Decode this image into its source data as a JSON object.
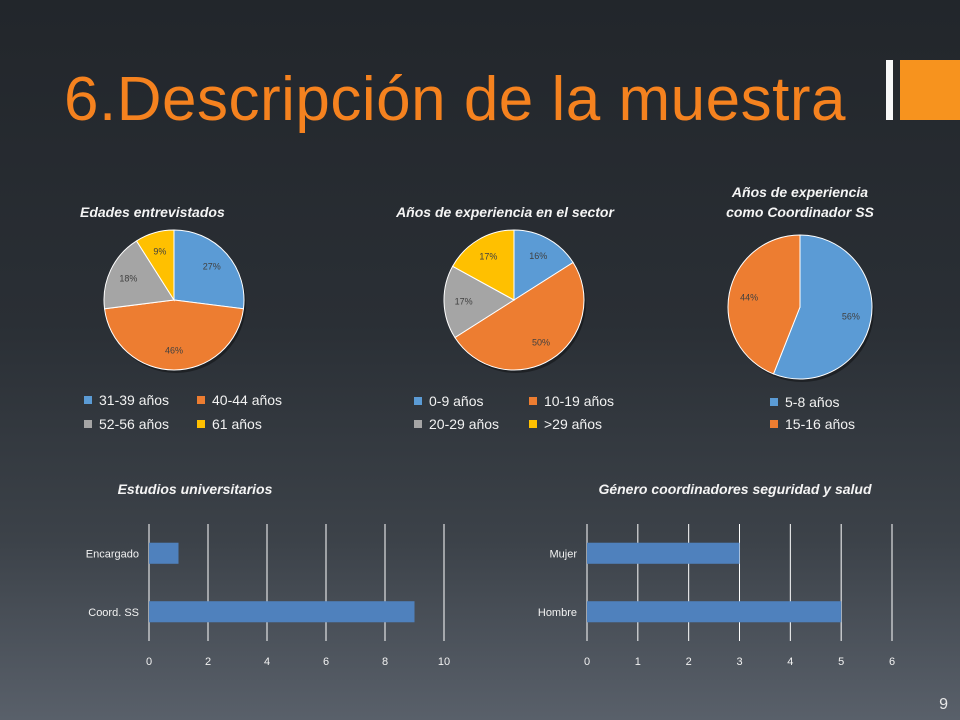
{
  "slide": {
    "title": "6.Descripción de la muestra",
    "page_number": "9",
    "accent_color": "#f5821f"
  },
  "palette": {
    "blue": "#5b9bd5",
    "orange": "#ed7d31",
    "gray": "#a5a5a5",
    "yellow": "#ffc000",
    "bar": "#4f81bd"
  },
  "chart_data": [
    {
      "type": "pie",
      "title": "Edades entrevistados",
      "categories": [
        "31-39 años",
        "40-44 años",
        "52-56 años",
        "61 años"
      ],
      "values": [
        27,
        46,
        18,
        9
      ],
      "labels": [
        "27%",
        "46%",
        "18%",
        "9%"
      ],
      "colors": [
        "#5b9bd5",
        "#ed7d31",
        "#a5a5a5",
        "#ffc000"
      ],
      "legend": "bottom"
    },
    {
      "type": "pie",
      "title": "Años de experiencia en el sector",
      "categories": [
        "0-9  años",
        "10-19 años",
        "20-29 años",
        ">29 años"
      ],
      "values": [
        16,
        50,
        17,
        17
      ],
      "labels": [
        "16%",
        "50%",
        "17%",
        "17%"
      ],
      "colors": [
        "#5b9bd5",
        "#ed7d31",
        "#a5a5a5",
        "#ffc000"
      ],
      "legend": "bottom"
    },
    {
      "type": "pie",
      "title": [
        "Años de experiencia",
        "como Coordinador SS"
      ],
      "categories": [
        "5-8 años",
        "15-16 años"
      ],
      "values": [
        56,
        44
      ],
      "labels": [
        "56%",
        "44%"
      ],
      "colors": [
        "#5b9bd5",
        "#ed7d31"
      ],
      "legend": "bottom"
    },
    {
      "type": "bar",
      "orientation": "horizontal",
      "title": "Estudios universitarios",
      "categories": [
        "Encargado",
        "Coord. SS"
      ],
      "values": [
        1,
        9
      ],
      "xlim": [
        0,
        10
      ],
      "xticks": [
        0,
        2,
        4,
        6,
        8,
        10
      ],
      "grid": true
    },
    {
      "type": "bar",
      "orientation": "horizontal",
      "title": "Género coordinadores seguridad y salud",
      "categories": [
        "Mujer",
        "Hombre"
      ],
      "values": [
        3,
        5
      ],
      "xlim": [
        0,
        6
      ],
      "xticks": [
        0,
        1,
        2,
        3,
        4,
        5,
        6
      ],
      "grid": true
    }
  ]
}
